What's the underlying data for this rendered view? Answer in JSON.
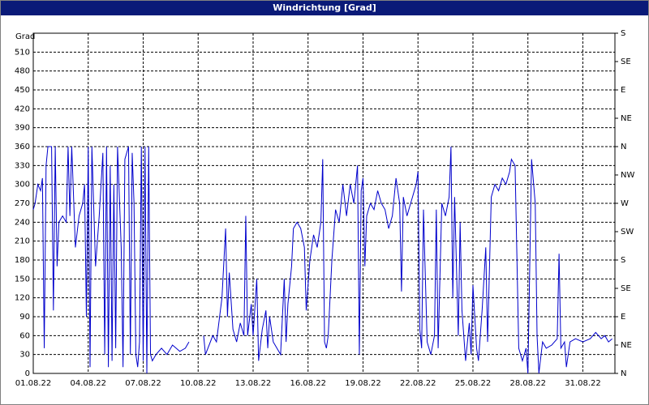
{
  "chart_data": {
    "type": "line",
    "title": "Windrichtung [Grad]",
    "y_label": "Grad",
    "xlim": [
      0,
      31.75
    ],
    "xticks": [
      {
        "value": 0,
        "label": "01.08.22"
      },
      {
        "value": 3,
        "label": "04.08.22"
      },
      {
        "value": 6,
        "label": "07.08.22"
      },
      {
        "value": 9,
        "label": "10.08.22"
      },
      {
        "value": 12,
        "label": "13.08.22"
      },
      {
        "value": 15,
        "label": "16.08.22"
      },
      {
        "value": 18,
        "label": "19.08.22"
      },
      {
        "value": 21,
        "label": "22.08.22"
      },
      {
        "value": 24,
        "label": "25.08.22"
      },
      {
        "value": 27,
        "label": "28.08.22"
      },
      {
        "value": 30,
        "label": "31.08.22"
      }
    ],
    "ylim": [
      0,
      540
    ],
    "yticks": [
      0,
      30,
      60,
      90,
      120,
      150,
      180,
      210,
      240,
      270,
      300,
      330,
      360,
      390,
      420,
      450,
      480,
      510
    ],
    "y2lim": [
      0,
      540
    ],
    "y2ticks": [
      {
        "value": 0,
        "label": "N"
      },
      {
        "value": 45,
        "label": "NE"
      },
      {
        "value": 90,
        "label": "E"
      },
      {
        "value": 135,
        "label": "SE"
      },
      {
        "value": 180,
        "label": "S"
      },
      {
        "value": 225,
        "label": "SW"
      },
      {
        "value": 270,
        "label": "W"
      },
      {
        "value": 315,
        "label": "NW"
      },
      {
        "value": 360,
        "label": "N"
      },
      {
        "value": 405,
        "label": "NE"
      },
      {
        "value": 450,
        "label": "E"
      },
      {
        "value": 495,
        "label": "SE"
      },
      {
        "value": 540,
        "label": "S"
      }
    ],
    "grid": true,
    "x": [
      0,
      0.1,
      0.25,
      0.4,
      0.5,
      0.6,
      0.7,
      0.8,
      1.0,
      1.1,
      1.2,
      1.3,
      1.4,
      1.6,
      1.8,
      1.9,
      2.0,
      2.1,
      2.3,
      2.5,
      2.7,
      2.8,
      2.9,
      3.0,
      3.1,
      3.2,
      3.4,
      3.6,
      3.8,
      3.9,
      4.0,
      4.1,
      4.2,
      4.3,
      4.4,
      4.5,
      4.6,
      4.8,
      4.9,
      5.0,
      5.2,
      5.3,
      5.4,
      5.5,
      5.6,
      5.7,
      5.8,
      5.9,
      6.0,
      6.1,
      6.2,
      6.3,
      6.4,
      6.5,
      6.7,
      7.0,
      7.3,
      7.6,
      8.0,
      8.3,
      8.5,
      9.0,
      9.3,
      9.4,
      9.8,
      10.0,
      10.3,
      10.5,
      10.6,
      10.7,
      10.9,
      11.1,
      11.3,
      11.5,
      11.6,
      11.7,
      11.9,
      12.0,
      12.2,
      12.3,
      12.5,
      12.7,
      12.8,
      12.9,
      13.1,
      13.3,
      13.5,
      13.7,
      13.8,
      13.9,
      14.1,
      14.2,
      14.4,
      14.6,
      14.8,
      14.9,
      15.1,
      15.3,
      15.5,
      15.7,
      15.8,
      15.9,
      16.0,
      16.1,
      16.3,
      16.5,
      16.7,
      16.9,
      17.1,
      17.3,
      17.5,
      17.7,
      17.8,
      17.9,
      18.0,
      18.1,
      18.2,
      18.4,
      18.6,
      18.8,
      19.0,
      19.2,
      19.4,
      19.6,
      19.8,
      20.0,
      20.1,
      20.2,
      20.4,
      20.6,
      20.9,
      21.0,
      21.1,
      21.2,
      21.3,
      21.5,
      21.7,
      21.9,
      22.0,
      22.1,
      22.3,
      22.5,
      22.7,
      22.8,
      22.9,
      23.0,
      23.2,
      23.3,
      23.4,
      23.6,
      23.8,
      23.9,
      24.0,
      24.2,
      24.3,
      24.5,
      24.7,
      24.8,
      25.0,
      25.2,
      25.4,
      25.6,
      25.8,
      26.0,
      26.1,
      26.3,
      26.5,
      26.7,
      26.9,
      27.0,
      27.2,
      27.4,
      27.5,
      27.6,
      27.8,
      28.0,
      28.3,
      28.6,
      28.7,
      28.8,
      29.0,
      29.1,
      29.3,
      29.6,
      30.0,
      30.4,
      30.7,
      31.0,
      31.2,
      31.4,
      31.6
    ],
    "series": [
      {
        "name": "Windrichtung",
        "color": "#0000cc",
        "values": [
          260,
          270,
          300,
          290,
          310,
          40,
          330,
          360,
          360,
          100,
          360,
          170,
          240,
          250,
          240,
          360,
          250,
          360,
          200,
          250,
          270,
          300,
          90,
          360,
          10,
          360,
          170,
          250,
          350,
          30,
          360,
          10,
          330,
          20,
          300,
          40,
          360,
          200,
          10,
          340,
          360,
          30,
          350,
          270,
          30,
          10,
          50,
          360,
          20,
          360,
          0,
          360,
          30,
          20,
          30,
          40,
          30,
          45,
          35,
          40,
          50,
          null,
          60,
          30,
          60,
          50,
          120,
          230,
          90,
          160,
          70,
          50,
          80,
          60,
          250,
          60,
          110,
          60,
          150,
          20,
          70,
          100,
          40,
          90,
          50,
          40,
          30,
          150,
          50,
          110,
          170,
          230,
          240,
          230,
          200,
          100,
          180,
          220,
          200,
          240,
          340,
          50,
          40,
          60,
          180,
          260,
          240,
          300,
          250,
          300,
          270,
          330,
          30,
          290,
          310,
          170,
          250,
          270,
          260,
          290,
          270,
          260,
          230,
          250,
          310,
          270,
          130,
          280,
          250,
          270,
          300,
          320,
          70,
          40,
          260,
          50,
          30,
          60,
          260,
          40,
          270,
          250,
          280,
          360,
          120,
          280,
          60,
          240,
          100,
          20,
          80,
          30,
          140,
          40,
          20,
          100,
          200,
          50,
          280,
          300,
          290,
          310,
          300,
          320,
          340,
          330,
          40,
          20,
          40,
          0,
          340,
          270,
          60,
          0,
          50,
          40,
          45,
          55,
          190,
          40,
          50,
          10,
          50,
          55,
          50,
          55,
          65,
          55,
          60,
          50,
          55
        ]
      }
    ]
  }
}
